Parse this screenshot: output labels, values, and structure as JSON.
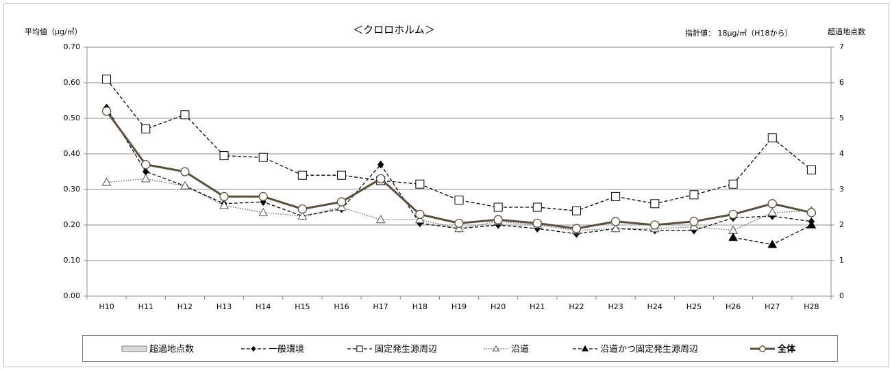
{
  "chart_data": {
    "type": "line",
    "title": "＜クロロホルム＞",
    "y_label": "平均値（μg/㎥）",
    "y2_label": "超過地点数",
    "annotation": "指針値： 18μg/㎥（H18から）",
    "categories": [
      "H10",
      "H11",
      "H12",
      "H13",
      "H14",
      "H15",
      "H16",
      "H17",
      "H18",
      "H19",
      "H20",
      "H21",
      "H22",
      "H23",
      "H24",
      "H25",
      "H26",
      "H27",
      "H28"
    ],
    "ylim": [
      0,
      0.7
    ],
    "yticks": [
      {
        "value": 0,
        "label": "0.00"
      },
      {
        "value": 0.1,
        "label": "0.10"
      },
      {
        "value": 0.2,
        "label": "0.20"
      },
      {
        "value": 0.3,
        "label": "0.30"
      },
      {
        "value": 0.4,
        "label": "0.40"
      },
      {
        "value": 0.5,
        "label": "0.50"
      },
      {
        "value": 0.6,
        "label": "0.60"
      },
      {
        "value": 0.7,
        "label": "0.70"
      }
    ],
    "y2lim": [
      0,
      7
    ],
    "y2ticks": [
      0,
      1,
      2,
      3,
      4,
      5,
      6,
      7
    ],
    "grid": true,
    "legend": "bottom",
    "series": [
      {
        "name": "超過地点数",
        "type": "bar",
        "axis": "y2",
        "color": "#d9d9d9",
        "values": [
          0,
          0,
          0,
          0,
          0,
          0,
          0,
          0,
          0,
          0,
          0,
          0,
          0,
          0,
          0,
          0,
          0,
          0,
          0
        ]
      },
      {
        "name": "一般環境",
        "color": "#000000",
        "dash": "dashed",
        "marker": "diamond",
        "marker_fill": "filled",
        "width": 1.3,
        "values": [
          0.53,
          0.35,
          0.31,
          0.26,
          0.265,
          0.225,
          0.245,
          0.37,
          0.205,
          0.19,
          0.2,
          0.19,
          0.175,
          0.19,
          0.185,
          0.185,
          0.22,
          0.225,
          0.21
        ]
      },
      {
        "name": "固定発生源周辺",
        "color": "#000000",
        "dash": "dashed",
        "marker": "square",
        "marker_fill": "open",
        "width": 1.3,
        "values": [
          0.61,
          0.47,
          0.51,
          0.395,
          0.39,
          0.34,
          0.34,
          0.325,
          0.315,
          0.27,
          0.25,
          0.25,
          0.24,
          0.28,
          0.26,
          0.285,
          0.315,
          0.445,
          0.355
        ]
      },
      {
        "name": "沿道",
        "color": "#555555",
        "dash": "dotted",
        "marker": "triangle",
        "marker_fill": "open",
        "width": 1.2,
        "values": [
          0.32,
          0.33,
          0.31,
          0.255,
          0.235,
          0.225,
          0.25,
          0.215,
          0.215,
          0.19,
          0.21,
          0.2,
          0.185,
          0.19,
          0.19,
          0.195,
          0.185,
          0.235,
          0.24
        ]
      },
      {
        "name": "沿道かつ固定発生源周辺",
        "color": "#000000",
        "dash": "dashed",
        "marker": "triangle",
        "marker_fill": "filled",
        "width": 1.3,
        "values": [
          null,
          null,
          null,
          null,
          null,
          null,
          null,
          null,
          null,
          null,
          null,
          null,
          null,
          null,
          null,
          null,
          0.165,
          0.145,
          0.2
        ]
      },
      {
        "name": "全体",
        "color": "#5a4e3c",
        "dash": "solid",
        "marker": "circle",
        "marker_fill": "open",
        "width": 3,
        "values": [
          0.52,
          0.37,
          0.35,
          0.28,
          0.28,
          0.245,
          0.265,
          0.33,
          0.23,
          0.205,
          0.215,
          0.205,
          0.19,
          0.21,
          0.2,
          0.21,
          0.23,
          0.26,
          0.235
        ]
      }
    ]
  }
}
